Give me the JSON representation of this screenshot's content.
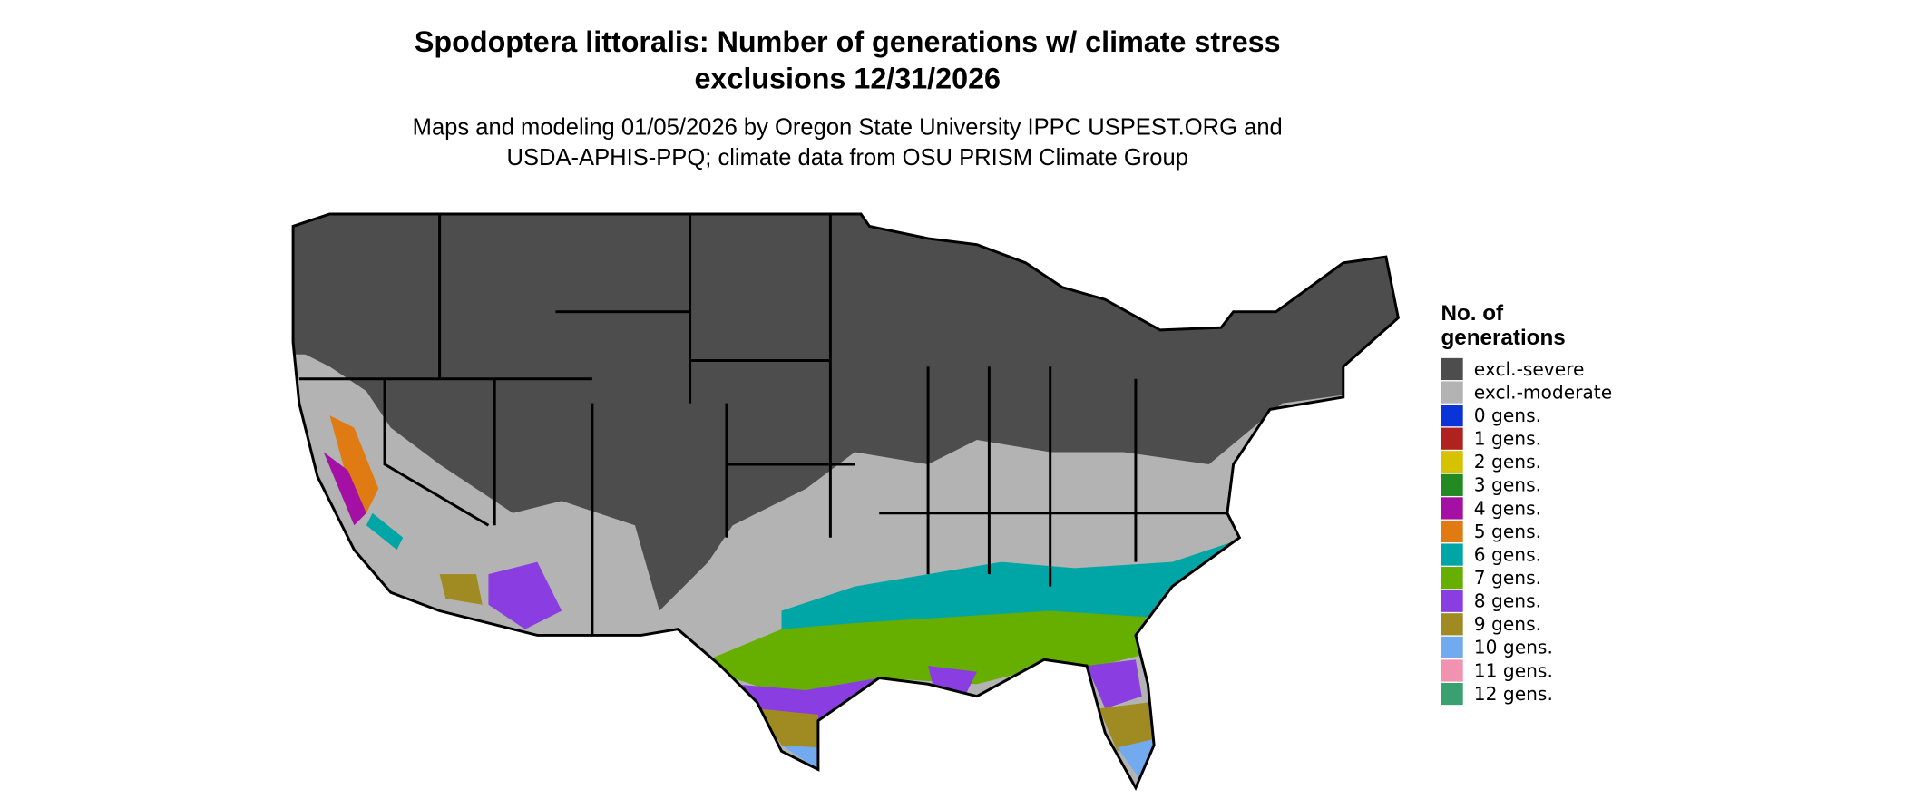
{
  "title": "Spodoptera littoralis: Number of generations w/ climate stress exclusions 12/31/2026",
  "subtitle": "Maps and modeling 01/05/2026 by Oregon State University IPPC USPEST.ORG and USDA-APHIS-PPQ; climate data from OSU PRISM Climate Group",
  "legend": {
    "title": "No. of generations",
    "items": [
      {
        "label": "excl.-severe",
        "color": "#4d4d4d"
      },
      {
        "label": "excl.-moderate",
        "color": "#b3b3b3"
      },
      {
        "label": "0 gens.",
        "color": "#0a33d8"
      },
      {
        "label": "1 gens.",
        "color": "#b0221e"
      },
      {
        "label": "2 gens.",
        "color": "#d6c200"
      },
      {
        "label": "3 gens.",
        "color": "#238a23"
      },
      {
        "label": "4 gens.",
        "color": "#a410a4"
      },
      {
        "label": "5 gens.",
        "color": "#e07a12"
      },
      {
        "label": "6 gens.",
        "color": "#00a6a6"
      },
      {
        "label": "7 gens.",
        "color": "#66ae00"
      },
      {
        "label": "8 gens.",
        "color": "#8a3de0"
      },
      {
        "label": "9 gens.",
        "color": "#a08a22"
      },
      {
        "label": "10 gens.",
        "color": "#72aaf0"
      },
      {
        "label": "11 gens.",
        "color": "#f092b0"
      },
      {
        "label": "12 gens.",
        "color": "#3aa070"
      }
    ]
  }
}
